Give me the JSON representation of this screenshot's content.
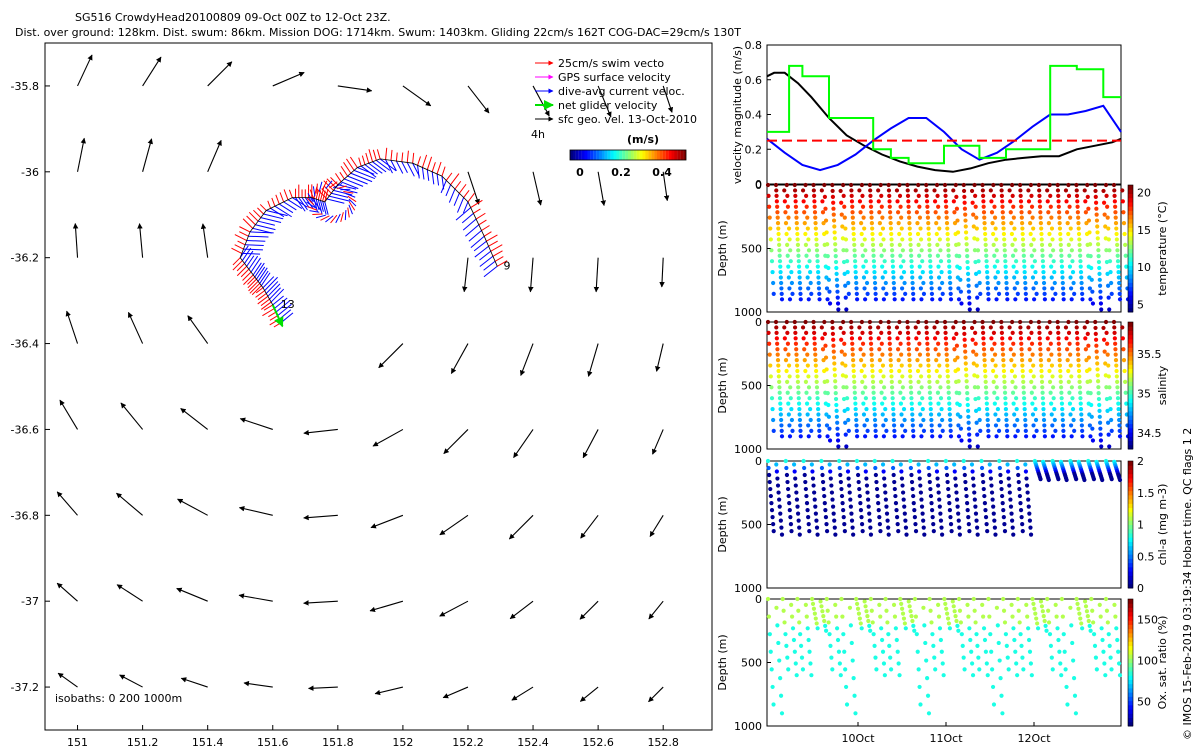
{
  "title_line1": "SG516 CrowdyHead20100809 09-Oct 00Z to 12-Oct 23Z.",
  "title_line2": "Dist. over ground: 128km. Dist. swum: 86km. Mission DOG: 1714km. Swum: 1403km. Gliding 22cm/s 162T COG-DAC=29cm/s 130T",
  "credit": "© IMOS 15-Feb-2019 03:19:34 Hobart time. QC flags 1  2",
  "chart_data": [
    {
      "type": "scatter",
      "panel": "map",
      "xlim": [
        150.9,
        152.95
      ],
      "ylim": [
        -37.3,
        -35.7
      ],
      "xticks": [
        151,
        151.2,
        151.4,
        151.6,
        151.8,
        152,
        152.2,
        152.4,
        152.6,
        152.8
      ],
      "yticks": [
        -35.8,
        -36,
        -36.2,
        -36.4,
        -36.6,
        -36.8,
        -37,
        -37.2
      ],
      "legend": [
        "25cm/s swim vecto",
        "GPS surface velocity",
        "dive-avg current veloc.",
        "net glider velocity",
        "sfc geo. vel. 13-Oct-2010"
      ],
      "legend_colors": [
        "#ff0000",
        "#ff00ff",
        "#0000ff",
        "#00e000",
        "#000000"
      ],
      "legend_placement": "top-right",
      "time_label": "4h",
      "colorbar_unit": "(m/s)",
      "colorbar_ticks": [
        "0",
        "0.2",
        "0.4"
      ],
      "note": "isobaths: 0   200  1000m",
      "track_labels": [
        "9",
        "13"
      ],
      "track": [
        [
          152.29,
          -36.22
        ],
        [
          152.25,
          -36.15
        ],
        [
          152.2,
          -36.07
        ],
        [
          152.12,
          -36.01
        ],
        [
          152.03,
          -35.98
        ],
        [
          151.93,
          -35.97
        ],
        [
          151.86,
          -35.99
        ],
        [
          151.8,
          -36.03
        ],
        [
          151.76,
          -36.07
        ],
        [
          151.72,
          -36.06
        ],
        [
          151.66,
          -36.06
        ],
        [
          151.58,
          -36.09
        ],
        [
          151.53,
          -36.14
        ],
        [
          151.5,
          -36.2
        ],
        [
          151.54,
          -36.24
        ],
        [
          151.57,
          -36.27
        ],
        [
          151.6,
          -36.31
        ],
        [
          151.63,
          -36.36
        ]
      ],
      "net_velocity": [
        [
          151.6,
          -36.31
        ],
        [
          151.63,
          -36.36
        ]
      ]
    },
    {
      "type": "line",
      "panel": "velocity",
      "ylabel": "velocity magnitude (m/s)",
      "xlim": [
        0,
        4
      ],
      "ylim": [
        0,
        0.8
      ],
      "yticks": [
        "0",
        "0.2",
        "0.4",
        "0.6",
        "0.8"
      ],
      "series": [
        {
          "color": "#000000",
          "x": [
            0,
            0.08,
            0.2,
            0.35,
            0.5,
            0.7,
            0.9,
            1.1,
            1.3,
            1.5,
            1.7,
            1.9,
            2.1,
            2.3,
            2.5,
            2.7,
            2.9,
            3.1,
            3.3,
            3.5,
            3.7,
            3.9,
            4.0
          ],
          "y": [
            0.62,
            0.64,
            0.64,
            0.58,
            0.5,
            0.38,
            0.28,
            0.22,
            0.17,
            0.13,
            0.1,
            0.08,
            0.07,
            0.09,
            0.12,
            0.14,
            0.15,
            0.16,
            0.16,
            0.2,
            0.22,
            0.24,
            0.26
          ]
        },
        {
          "color": "#0000ff",
          "x": [
            0,
            0.2,
            0.4,
            0.6,
            0.8,
            1.0,
            1.2,
            1.4,
            1.6,
            1.8,
            2.0,
            2.2,
            2.4,
            2.6,
            2.8,
            3.0,
            3.2,
            3.4,
            3.6,
            3.8,
            4.0
          ],
          "y": [
            0.26,
            0.18,
            0.11,
            0.08,
            0.11,
            0.17,
            0.25,
            0.32,
            0.38,
            0.38,
            0.3,
            0.2,
            0.14,
            0.18,
            0.25,
            0.33,
            0.4,
            0.4,
            0.42,
            0.45,
            0.3
          ]
        },
        {
          "color": "#00ff00",
          "x": [
            0,
            0.25,
            0.25,
            0.4,
            0.4,
            0.7,
            0.7,
            1.2,
            1.2,
            1.4,
            1.4,
            1.6,
            1.6,
            2.0,
            2.0,
            2.4,
            2.4,
            2.7,
            2.7,
            3.2,
            3.2,
            3.5,
            3.5,
            3.8,
            3.8,
            4.0
          ],
          "y": [
            0.3,
            0.3,
            0.68,
            0.68,
            0.62,
            0.62,
            0.38,
            0.38,
            0.2,
            0.2,
            0.15,
            0.15,
            0.12,
            0.12,
            0.22,
            0.22,
            0.15,
            0.15,
            0.2,
            0.2,
            0.68,
            0.68,
            0.66,
            0.66,
            0.5,
            0.5
          ]
        },
        {
          "color": "#ff0000",
          "dashed": true,
          "x": [
            0,
            4.0
          ],
          "y": [
            0.25,
            0.25
          ]
        }
      ]
    },
    {
      "type": "scatter",
      "panel": "temperature",
      "ylabel": "Depth (m)",
      "cblabel": "temperature (°C)",
      "cbticks": [
        "5",
        "10",
        "15",
        "20"
      ],
      "ylim": [
        1000,
        0
      ],
      "yticks": [
        "0",
        "500",
        "1000"
      ],
      "colorscale": "jet",
      "vmin": 4,
      "vmax": 21
    },
    {
      "type": "scatter",
      "panel": "salinity",
      "ylabel": "Depth (m)",
      "cblabel": "salinity",
      "cbticks": [
        "34.5",
        "35",
        "35.5"
      ],
      "ylim": [
        1000,
        0
      ],
      "yticks": [
        "0",
        "500",
        "1000"
      ],
      "colorscale": "jet",
      "vmin": 34.3,
      "vmax": 35.9
    },
    {
      "type": "scatter",
      "panel": "chla",
      "ylabel": "Depth (m)",
      "cblabel": "chl-a (mg m-3)",
      "cbticks": [
        "0",
        "0.5",
        "1",
        "1.5",
        "2"
      ],
      "ylim": [
        1000,
        0
      ],
      "yticks": [
        "0",
        "500",
        "1000"
      ],
      "colorscale": "jet",
      "vmin": 0,
      "vmax": 2
    },
    {
      "type": "scatter",
      "panel": "oxygen",
      "ylabel": "Depth (m)",
      "cblabel": "Ox. sat. ratio (%)",
      "cbticks": [
        "50",
        "100",
        "150"
      ],
      "ylim": [
        1000,
        0
      ],
      "yticks": [
        "0",
        "500",
        "1000"
      ],
      "xticks": [
        "10Oct",
        "11Oct",
        "12Oct"
      ],
      "colorscale": "jet",
      "vmin": 20,
      "vmax": 175
    }
  ]
}
